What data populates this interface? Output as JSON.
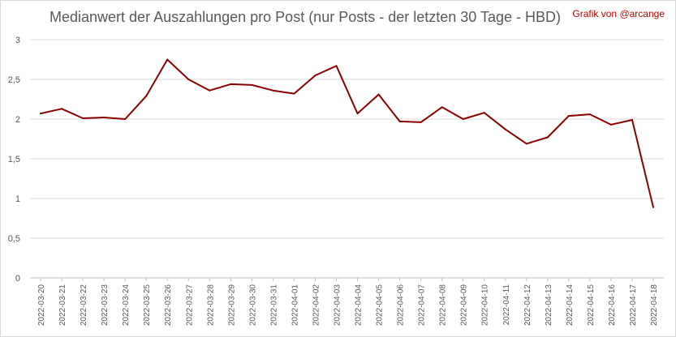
{
  "chart_data": {
    "type": "line",
    "title": "Medianwert der Auszahlungen pro Post (nur Posts - der letzten 30 Tage - HBD)",
    "credit": "Grafik von @arcange",
    "ylim": [
      0,
      3
    ],
    "yticks": [
      {
        "value": 0,
        "label": "0"
      },
      {
        "value": 0.5,
        "label": "0,5"
      },
      {
        "value": 1,
        "label": "1"
      },
      {
        "value": 1.5,
        "label": "1,5"
      },
      {
        "value": 2,
        "label": "2"
      },
      {
        "value": 2.5,
        "label": "2,5"
      },
      {
        "value": 3,
        "label": "3"
      }
    ],
    "grid": true,
    "line_color": "#8b0000",
    "categories": [
      "2022-03-20",
      "2022-03-21",
      "2022-03-22",
      "2022-03-23",
      "2022-03-24",
      "2022-03-25",
      "2022-03-26",
      "2022-03-27",
      "2022-03-28",
      "2022-03-29",
      "2022-03-30",
      "2022-03-31",
      "2022-04-01",
      "2022-04-02",
      "2022-04-03",
      "2022-04-04",
      "2022-04-05",
      "2022-04-06",
      "2022-04-07",
      "2022-04-08",
      "2022-04-09",
      "2022-04-10",
      "2022-04-11",
      "2022-04-12",
      "2022-04-13",
      "2022-04-14",
      "2022-04-15",
      "2022-04-16",
      "2022-04-17",
      "2022-04-18"
    ],
    "values": [
      2.07,
      2.13,
      2.01,
      2.02,
      2.0,
      2.29,
      2.75,
      2.5,
      2.36,
      2.44,
      2.43,
      2.36,
      2.32,
      2.55,
      2.67,
      2.07,
      2.31,
      1.97,
      1.96,
      2.15,
      2.0,
      2.08,
      1.87,
      1.69,
      1.77,
      2.04,
      2.06,
      1.93,
      1.99,
      0.89
    ]
  }
}
